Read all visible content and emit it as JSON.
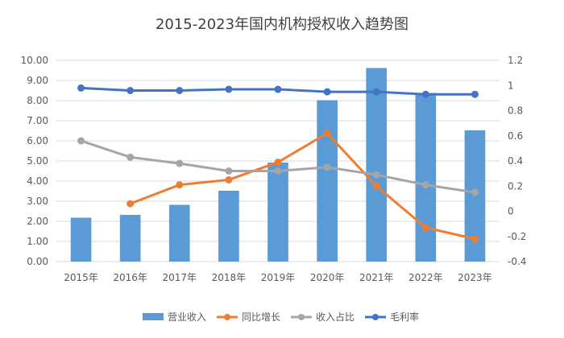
{
  "chart_data": {
    "type": "bar+line",
    "title": "2015-2023年国内机构授权收入趋势图",
    "categories": [
      "2015年",
      "2016年",
      "2017年",
      "2018年",
      "2019年",
      "2020年",
      "2021年",
      "2022年",
      "2023年"
    ],
    "y_left": {
      "min": 0,
      "max": 10,
      "step": 1,
      "ticks": [
        "0.00",
        "1.00",
        "2.00",
        "3.00",
        "4.00",
        "5.00",
        "6.00",
        "7.00",
        "8.00",
        "9.00",
        "10.00"
      ]
    },
    "y_right": {
      "min": -0.4,
      "max": 1.2,
      "step": 0.2,
      "ticks": [
        "-0.4",
        "-0.2",
        "0",
        "0.2",
        "0.4",
        "0.6",
        "0.8",
        "1",
        "1.2"
      ]
    },
    "grid": "horizontal",
    "legend_position": "bottom",
    "series": [
      {
        "name": "营业收入",
        "kind": "bar",
        "axis": "left",
        "color": "#5b9bd5",
        "values": [
          2.18,
          2.32,
          2.82,
          3.52,
          4.92,
          8.02,
          9.62,
          8.38,
          6.52
        ]
      },
      {
        "name": "同比增长",
        "kind": "line",
        "axis": "right",
        "color": "#ed7d31",
        "values": [
          null,
          0.06,
          0.21,
          0.25,
          0.39,
          0.62,
          0.2,
          -0.13,
          -0.22
        ]
      },
      {
        "name": "收入占比",
        "kind": "line",
        "axis": "right",
        "color": "#a5a5a5",
        "values": [
          0.56,
          0.43,
          0.38,
          0.32,
          0.32,
          0.35,
          0.29,
          0.21,
          0.15
        ]
      },
      {
        "name": "毛利率",
        "kind": "line",
        "axis": "right",
        "color": "#4472c4",
        "values": [
          0.98,
          0.96,
          0.96,
          0.97,
          0.97,
          0.95,
          0.95,
          0.93,
          0.93
        ]
      }
    ]
  }
}
